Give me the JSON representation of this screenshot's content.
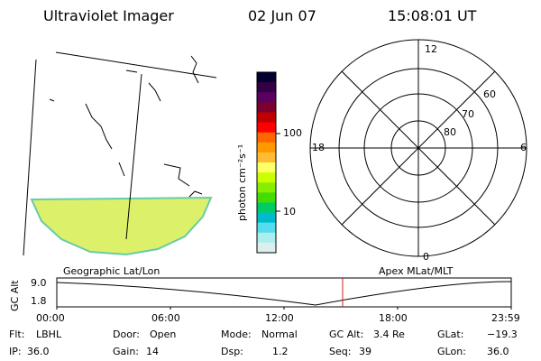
{
  "header": {
    "title": "Ultraviolet Imager",
    "date": "02 Jun 07",
    "time": "15:08:01 UT"
  },
  "colorbar": {
    "unit_label": "photon cm⁻²s⁻¹",
    "ticks": [
      "100",
      "10"
    ],
    "colors": [
      "#000033",
      "#330044",
      "#5a0060",
      "#7a0030",
      "#c00000",
      "#ff0000",
      "#ff6600",
      "#ff9900",
      "#ffbb33",
      "#ffff66",
      "#ccff00",
      "#88ee00",
      "#44dd00",
      "#00cc66",
      "#00bbcc",
      "#55ddee",
      "#aaeeee",
      "#ddeeee"
    ]
  },
  "polar": {
    "labels": {
      "top": "12",
      "bottom": "0",
      "left": "18",
      "right": "6"
    },
    "ring_labels": [
      "60",
      "70",
      "80"
    ]
  },
  "footer_plot": {
    "left_label": "Geographic Lat/Lon",
    "right_label": "Apex MLat/MLT",
    "yaxis_label": "GC Alt",
    "y_ticks": [
      "9.0",
      "1.8"
    ],
    "x_ticks": [
      "00:00",
      "06:00",
      "12:00",
      "18:00",
      "23:59"
    ],
    "marker_color": "#cc2222"
  },
  "status": {
    "row1": [
      {
        "label": "Flt:",
        "value": "LBHL"
      },
      {
        "label": "Door:",
        "value": "Open"
      },
      {
        "label": "Mode:",
        "value": "Normal"
      },
      {
        "label": "GC Alt:",
        "value": "3.4 Re"
      },
      {
        "label": "GLat:",
        "value": "−19.3"
      }
    ],
    "row2": [
      {
        "label": "IP:",
        "value": "36.0"
      },
      {
        "label": "Gain:",
        "value": "14"
      },
      {
        "label": "Dsp:",
        "value": "1.2"
      },
      {
        "label": "Seq:",
        "value": "39"
      },
      {
        "label": "GLon:",
        "value": "36.0"
      }
    ]
  }
}
